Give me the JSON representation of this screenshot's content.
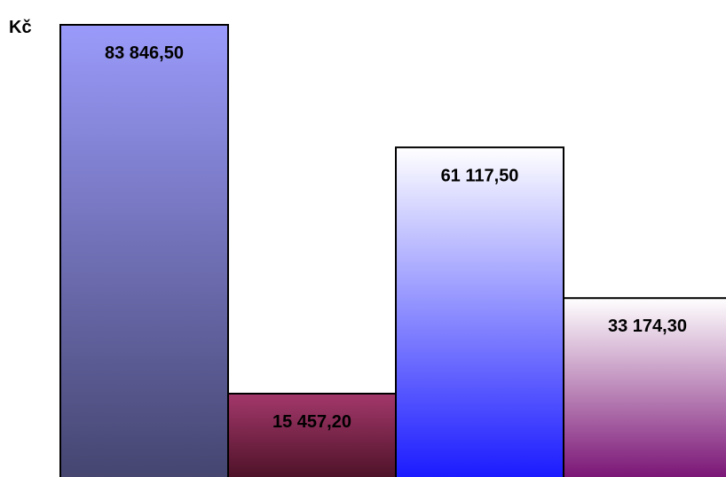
{
  "chart_data": {
    "type": "bar",
    "ylabel": "Kč",
    "values": [
      83846.5,
      15457.2,
      61117.5,
      33174.3
    ],
    "value_labels": [
      "83 846,50",
      "15 457,20",
      "61 117,50",
      "33 174,30"
    ],
    "ylim": [
      0,
      83846.5
    ],
    "grid": false,
    "legend": "none",
    "bar_gradients": [
      [
        "#9a9afb",
        "#454570"
      ],
      [
        "#a3386b",
        "#4d1227"
      ],
      [
        "#ffffff",
        "#1a1aff"
      ],
      [
        "#ffffff",
        "#7a1475"
      ]
    ]
  }
}
